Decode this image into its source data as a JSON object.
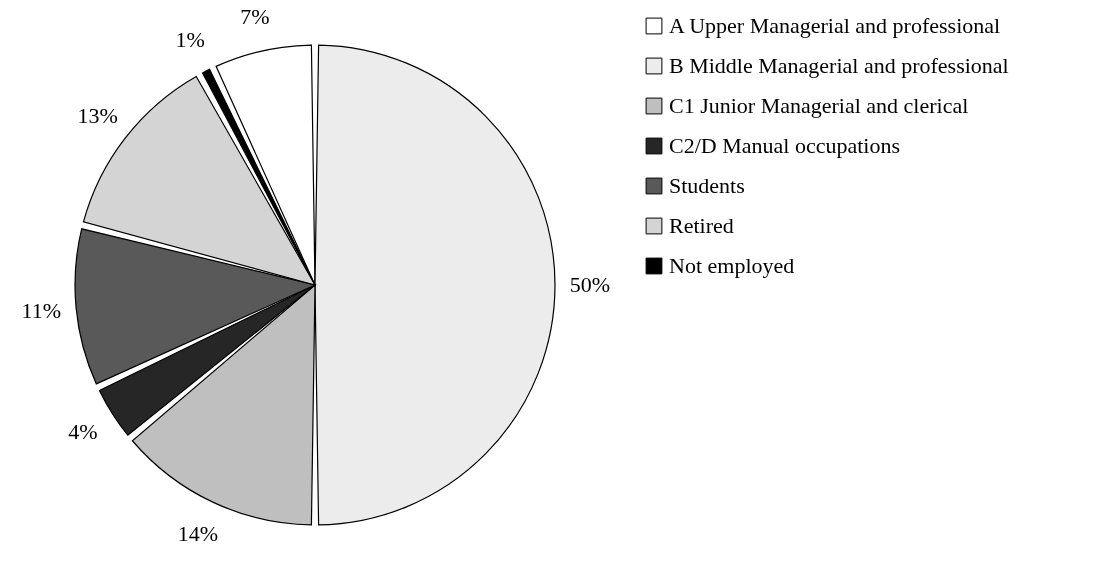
{
  "chart_data": {
    "type": "pie",
    "categories": [
      "A Upper Managerial and professional",
      "B Middle Managerial and professional",
      "C1 Junior Managerial and clerical",
      "C2/D Manual occupations",
      "Students",
      "Retired",
      "Not employed"
    ],
    "values": [
      7,
      50,
      14,
      4,
      11,
      13,
      1
    ],
    "value_labels": [
      "7%",
      "50%",
      "14%",
      "4%",
      "11%",
      "13%",
      "1%"
    ],
    "colors": [
      "#ffffff",
      "#ececec",
      "#bfbfbf",
      "#262626",
      "#595959",
      "#d4d4d4",
      "#000000"
    ],
    "legend": "right"
  }
}
